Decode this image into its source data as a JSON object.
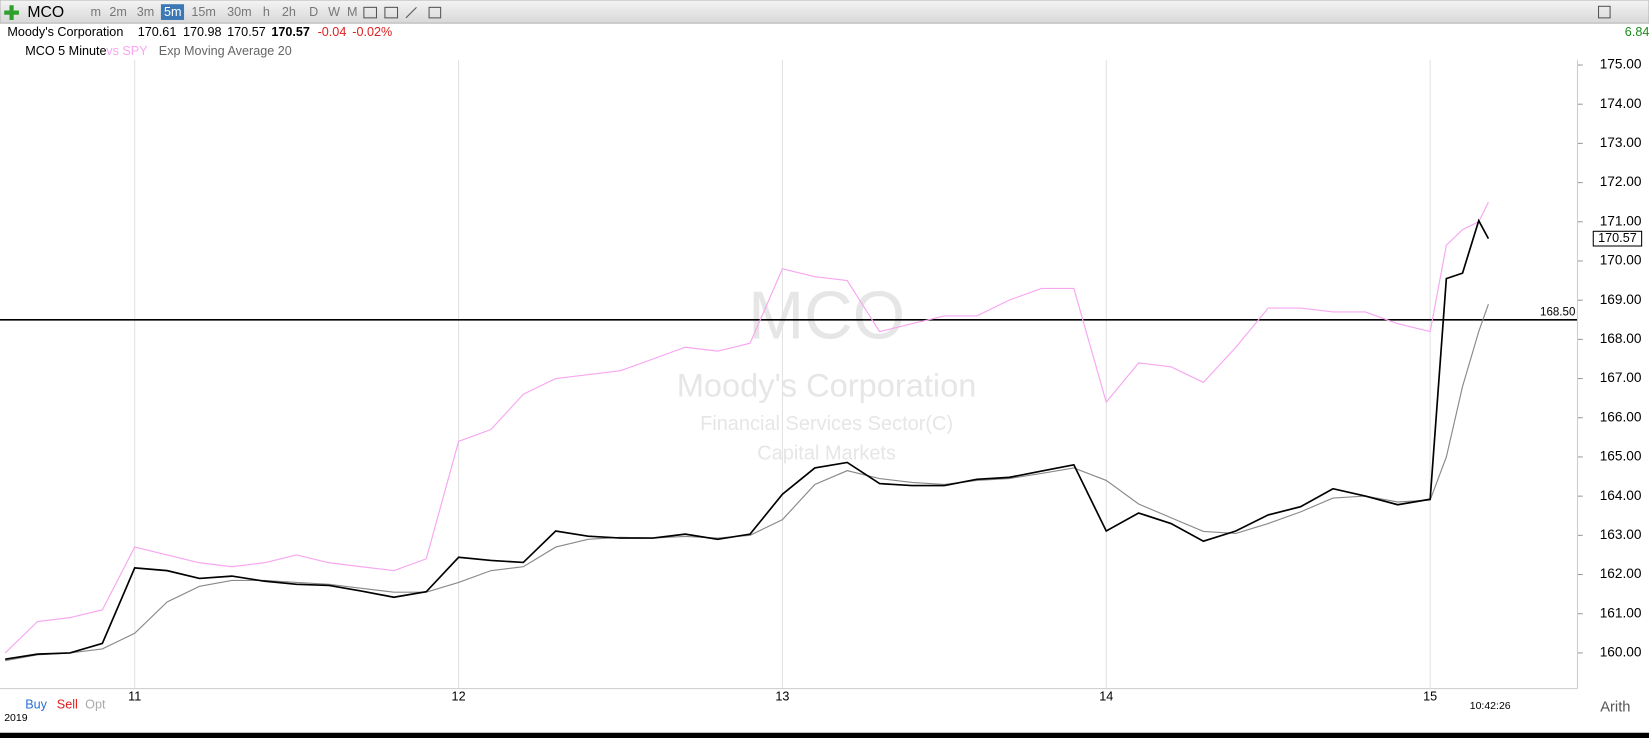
{
  "toolbar": {
    "symbol": "MCO",
    "timeframes": [
      "m",
      "2m",
      "3m",
      "5m",
      "15m",
      "30m",
      "h",
      "2h",
      "D",
      "W",
      "M"
    ],
    "active": "5m"
  },
  "quote": {
    "name": "Moody's Corporation",
    "open": "170.61",
    "high": "170.98",
    "low": "170.57",
    "last": "170.57",
    "change": "-0.04",
    "change_pct": "-0.02%",
    "right": "6.84"
  },
  "legend": {
    "main": "MCO 5 Minute",
    "compare": "vs SPY",
    "study": "Exp Moving Average 20"
  },
  "watermark": {
    "symbol": "MCO",
    "name": "Moody's Corporation",
    "sector": "Financial Services Sector(C)",
    "industry": "Capital Markets"
  },
  "footer": {
    "buy": "Buy",
    "sell": "Sell",
    "opt": "Opt",
    "time": "10:42:26",
    "scale": "Arith",
    "year": "2019"
  },
  "chart_data": {
    "type": "line",
    "x": [
      10.6,
      10.7,
      10.8,
      10.9,
      11.0,
      11.1,
      11.2,
      11.3,
      11.4,
      11.5,
      11.6,
      11.7,
      11.8,
      11.9,
      12.0,
      12.1,
      12.2,
      12.3,
      12.4,
      12.5,
      12.6,
      12.7,
      12.8,
      12.9,
      13.0,
      13.1,
      13.2,
      13.3,
      13.4,
      13.5,
      13.6,
      13.7,
      13.8,
      13.9,
      14.0,
      14.1,
      14.2,
      14.3,
      14.4,
      14.5,
      14.6,
      14.7,
      14.8,
      14.9,
      15.0,
      15.05,
      15.1,
      15.15,
      15.18
    ],
    "series": [
      {
        "name": "vs SPY",
        "color": "#f7a6f0",
        "values": [
          160.0,
          160.8,
          160.9,
          161.1,
          162.7,
          162.5,
          162.3,
          162.2,
          162.3,
          162.5,
          162.3,
          162.2,
          162.1,
          162.4,
          165.4,
          165.7,
          166.6,
          167.0,
          167.1,
          167.2,
          167.5,
          167.8,
          167.7,
          167.9,
          169.8,
          169.6,
          169.5,
          168.2,
          168.4,
          168.6,
          168.6,
          169.0,
          169.3,
          169.3,
          166.4,
          167.4,
          167.3,
          166.9,
          167.8,
          168.8,
          168.8,
          168.7,
          168.7,
          168.4,
          168.2,
          170.4,
          170.8,
          171.0,
          171.5
        ]
      },
      {
        "name": "Exp Moving Average 20",
        "color": "#8a8a8a",
        "values": [
          159.8,
          159.95,
          160.0,
          160.1,
          160.5,
          161.3,
          161.7,
          161.85,
          161.85,
          161.8,
          161.75,
          161.65,
          161.55,
          161.55,
          161.8,
          162.1,
          162.2,
          162.7,
          162.9,
          162.95,
          162.93,
          162.97,
          162.93,
          163.0,
          163.4,
          164.3,
          164.65,
          164.45,
          164.35,
          164.3,
          164.4,
          164.45,
          164.58,
          164.72,
          164.4,
          163.8,
          163.45,
          163.1,
          163.05,
          163.3,
          163.6,
          163.95,
          164.0,
          163.85,
          163.9,
          165.0,
          166.8,
          168.2,
          168.9
        ]
      },
      {
        "name": "MCO 5 Minute",
        "color": "#000000",
        "values": [
          159.84,
          159.97,
          160.0,
          160.24,
          162.17,
          162.1,
          161.9,
          161.96,
          161.83,
          161.75,
          161.72,
          161.58,
          161.42,
          161.56,
          162.44,
          162.36,
          162.31,
          163.11,
          162.98,
          162.93,
          162.93,
          163.03,
          162.9,
          163.03,
          164.05,
          164.72,
          164.86,
          164.32,
          164.27,
          164.27,
          164.43,
          164.48,
          164.64,
          164.8,
          163.11,
          163.57,
          163.3,
          162.85,
          163.11,
          163.52,
          163.73,
          164.19,
          164.0,
          163.78,
          163.92,
          169.55,
          169.69,
          171.03,
          170.57
        ]
      }
    ],
    "xlim": [
      10.584,
      15.455
    ],
    "xticks": [
      11,
      12,
      13,
      14,
      15
    ],
    "ylim": [
      159.09,
      175.13
    ],
    "yticks": [
      {
        "value": 160,
        "label": "160.00"
      },
      {
        "value": 161,
        "label": "161.00"
      },
      {
        "value": 162,
        "label": "162.00"
      },
      {
        "value": 163,
        "label": "163.00"
      },
      {
        "value": 164,
        "label": "164.00"
      },
      {
        "value": 165,
        "label": "165.00"
      },
      {
        "value": 166,
        "label": "166.00"
      },
      {
        "value": 167,
        "label": "167.00"
      },
      {
        "value": 168,
        "label": "168.00"
      },
      {
        "value": 169,
        "label": "169.00"
      },
      {
        "value": 170,
        "label": "170.00"
      },
      {
        "value": 171,
        "label": "171.00"
      },
      {
        "value": 172,
        "label": "172.00"
      },
      {
        "value": 173,
        "label": "173.00"
      },
      {
        "value": 174,
        "label": "174.00"
      },
      {
        "value": 175,
        "label": "175.00"
      }
    ],
    "hline": {
      "value": 168.5,
      "label": "168.50"
    },
    "last_price": {
      "value": 170.57,
      "label": "170.57"
    },
    "grid": true
  }
}
